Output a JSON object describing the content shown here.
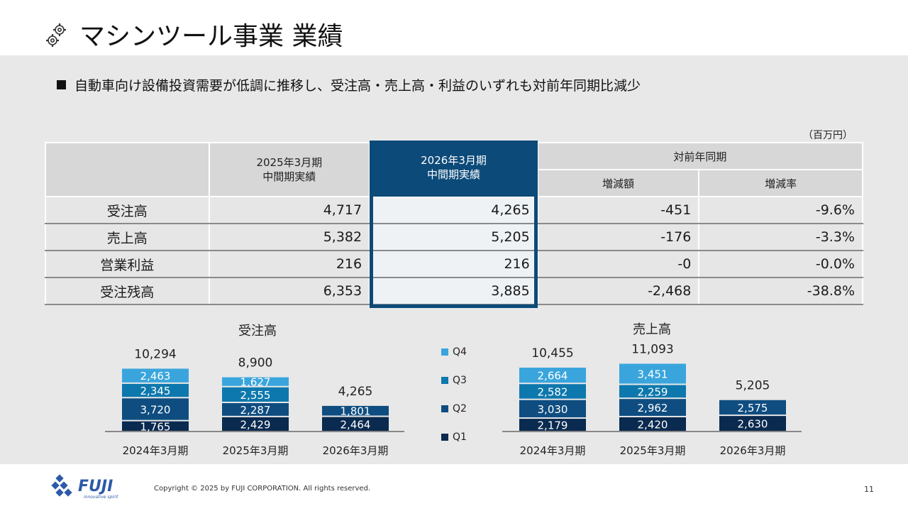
{
  "title": "マシンツール事業 業績",
  "headline": "自動車向け設備投資需要が低調に推移し、受注高・売上高・利益のいずれも対前年同期比減少",
  "unit": "（百万円）",
  "table": {
    "col_prev": [
      "2025年3月期",
      "中間期実績"
    ],
    "col_curr": [
      "2026年3月期",
      "中間期実績"
    ],
    "col_yoy": "対前年同期",
    "col_diff": "増減額",
    "col_rate": "増減率",
    "rows": [
      {
        "label": "受注高",
        "prev": "4,717",
        "curr": "4,265",
        "diff": "-451",
        "rate": "-9.6%"
      },
      {
        "label": "売上高",
        "prev": "5,382",
        "curr": "5,205",
        "diff": "-176",
        "rate": "-3.3%"
      },
      {
        "label": "営業利益",
        "prev": "216",
        "curr": "216",
        "diff": "-0",
        "rate": "-0.0%"
      },
      {
        "label": "受注残高",
        "prev": "6,353",
        "curr": "3,885",
        "diff": "-2,468",
        "rate": "-38.8%"
      }
    ]
  },
  "colors": {
    "Q1": "#0a2a4f",
    "Q2": "#0f4d80",
    "Q3": "#0d78ad",
    "Q4": "#3aa5dd",
    "accent": "#0c4a79"
  },
  "chart_data": [
    {
      "type": "bar",
      "stacked": true,
      "title": "受注高",
      "categories": [
        "2024年3月期",
        "2025年3月期",
        "2026年3月期"
      ],
      "totals": [
        "10,294",
        "8,900",
        "4,265"
      ],
      "series": [
        {
          "name": "Q1",
          "values": [
            1765,
            2429,
            2464
          ]
        },
        {
          "name": "Q2",
          "values": [
            3720,
            2287,
            1801
          ]
        },
        {
          "name": "Q3",
          "values": [
            2345,
            2555,
            null
          ]
        },
        {
          "name": "Q4",
          "values": [
            2463,
            1627,
            null
          ]
        }
      ],
      "labels": {
        "Q1": [
          "1,765",
          "2,429",
          "2,464"
        ],
        "Q2": [
          "3,720",
          "2,287",
          "1,801"
        ],
        "Q3": [
          "2,345",
          "2,555",
          ""
        ],
        "Q4": [
          "2,463",
          "1,627",
          ""
        ]
      }
    },
    {
      "type": "bar",
      "stacked": true,
      "title": "売上高",
      "categories": [
        "2024年3月期",
        "2025年3月期",
        "2026年3月期"
      ],
      "totals": [
        "10,455",
        "11,093",
        "5,205"
      ],
      "series": [
        {
          "name": "Q1",
          "values": [
            2179,
            2420,
            2630
          ]
        },
        {
          "name": "Q2",
          "values": [
            3030,
            2962,
            2575
          ]
        },
        {
          "name": "Q3",
          "values": [
            2582,
            2259,
            null
          ]
        },
        {
          "name": "Q4",
          "values": [
            2664,
            3451,
            null
          ]
        }
      ],
      "labels": {
        "Q1": [
          "2,179",
          "2,420",
          "2,630"
        ],
        "Q2": [
          "3,030",
          "2,962",
          "2,575"
        ],
        "Q3": [
          "2,582",
          "2,259",
          ""
        ],
        "Q4": [
          "2,664",
          "3,451",
          ""
        ]
      }
    }
  ],
  "legend": [
    "Q4",
    "Q3",
    "Q2",
    "Q1"
  ],
  "footer": {
    "copyright": "Copyright © 2025 by FUJI CORPORATION. All rights reserved.",
    "page": "11",
    "logo_text": "FUJI",
    "logo_tagline": "innovative spirit"
  }
}
